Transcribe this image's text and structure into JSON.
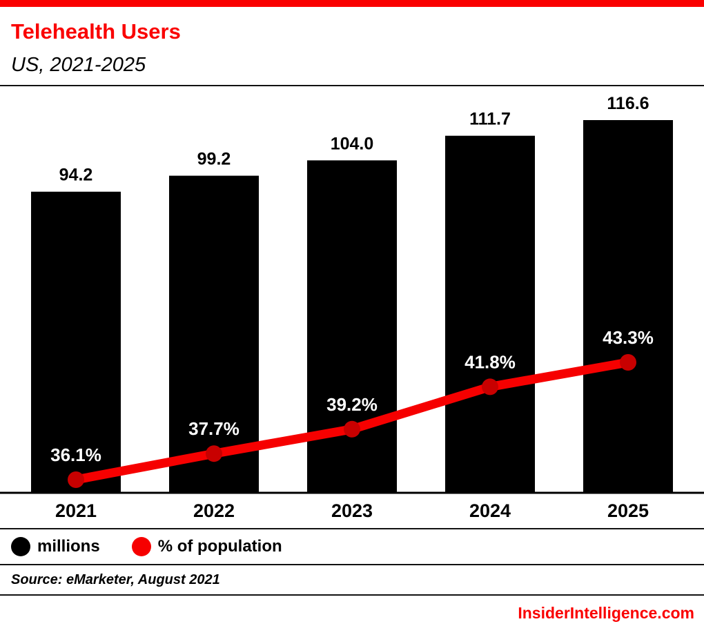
{
  "header": {
    "title": "Telehealth Users",
    "subtitle": "US, 2021-2025"
  },
  "chart_data": {
    "type": "bar",
    "title": "Telehealth Users",
    "subtitle": "US, 2021-2025",
    "categories": [
      "2021",
      "2022",
      "2023",
      "2024",
      "2025"
    ],
    "series": [
      {
        "name": "millions",
        "type": "bar",
        "color": "#000000",
        "values": [
          94.2,
          99.2,
          104.0,
          111.7,
          116.6
        ],
        "labels": [
          "94.2",
          "99.2",
          "104.0",
          "111.7",
          "116.6"
        ]
      },
      {
        "name": "% of population",
        "type": "line",
        "color": "#f60000",
        "dot_color": "#c80000",
        "values": [
          36.1,
          37.7,
          39.2,
          41.8,
          43.3
        ],
        "labels": [
          "36.1%",
          "37.7%",
          "39.2%",
          "41.8%",
          "43.3%"
        ]
      }
    ],
    "ylabel": "",
    "xlabel": "",
    "grid": false,
    "legend_position": "bottom"
  },
  "legend": {
    "items": [
      {
        "label": "millions",
        "color": "#000000"
      },
      {
        "label": "% of population",
        "color": "#f60000"
      }
    ]
  },
  "source": "Source: eMarketer, August 2021",
  "footer": {
    "brand": "InsiderIntelligence.com"
  },
  "colors": {
    "accent_red": "#fa0000",
    "bar_black": "#000000"
  }
}
